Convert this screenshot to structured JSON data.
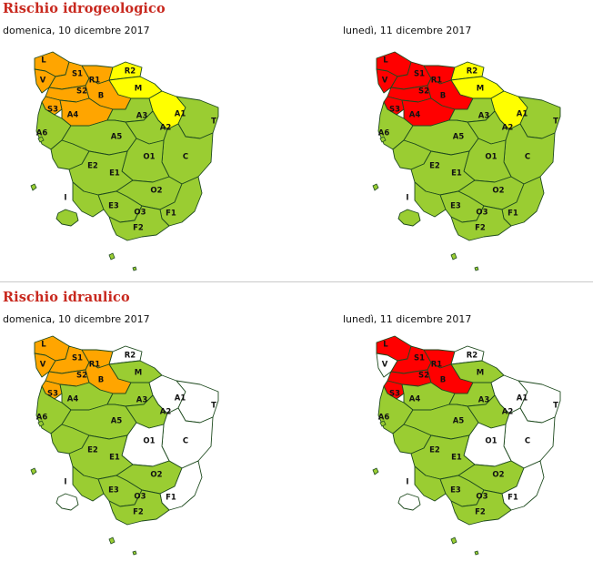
{
  "sections": [
    {
      "title": "Rischio idrogeologico",
      "maps": [
        {
          "date": "domenica, 10 dicembre 2017",
          "zones": {
            "L": "orange",
            "V": "orange",
            "S1": "orange",
            "S2": "orange",
            "S3": "orange",
            "A4": "orange",
            "B": "orange",
            "R1": "orange",
            "R2": "yellow",
            "M": "yellow",
            "A1": "yellow",
            "T": "green",
            "A3": "green",
            "A2": "green",
            "A6": "green",
            "A5": "green",
            "C": "green",
            "O1": "green",
            "E2": "green",
            "E1": "green",
            "O2": "green",
            "E3": "green",
            "O3": "green",
            "F1": "green",
            "F2": "green",
            "I": "green"
          }
        },
        {
          "date": "lunedì, 11 dicembre 2017",
          "zones": {
            "L": "red",
            "V": "red",
            "S1": "red",
            "S2": "red",
            "S3": "red",
            "A4": "red",
            "B": "red",
            "R1": "red",
            "R2": "yellow",
            "M": "yellow",
            "A1": "yellow",
            "T": "green",
            "A3": "green",
            "A2": "green",
            "A6": "green",
            "A5": "green",
            "C": "green",
            "O1": "green",
            "E2": "green",
            "E1": "green",
            "O2": "green",
            "E3": "green",
            "O3": "green",
            "F1": "green",
            "F2": "green",
            "I": "green"
          }
        }
      ]
    },
    {
      "title": "Rischio idraulico",
      "maps": [
        {
          "date": "domenica, 10 dicembre 2017",
          "zones": {
            "L": "orange",
            "V": "orange",
            "S1": "orange",
            "S2": "orange",
            "S3": "orange",
            "A4": "green",
            "B": "orange",
            "R1": "orange",
            "R2": "white",
            "M": "green",
            "A1": "white",
            "T": "white",
            "A3": "green",
            "A2": "green",
            "A6": "green",
            "A5": "green",
            "C": "white",
            "O1": "white",
            "E2": "green",
            "E1": "green",
            "O2": "green",
            "E3": "green",
            "O3": "green",
            "F1": "white",
            "F2": "green",
            "I": "white"
          }
        },
        {
          "date": "lunedì, 11 dicembre 2017",
          "zones": {
            "L": "red",
            "V": "white",
            "S1": "red",
            "S2": "red",
            "S3": "red",
            "A4": "green",
            "B": "red",
            "R1": "red",
            "R2": "white",
            "M": "green",
            "A1": "white",
            "T": "white",
            "A3": "green",
            "A2": "green",
            "A6": "green",
            "A5": "green",
            "C": "white",
            "O1": "white",
            "E2": "green",
            "E1": "green",
            "O2": "green",
            "E3": "green",
            "O3": "green",
            "F1": "white",
            "F2": "green",
            "I": "white"
          }
        }
      ]
    }
  ],
  "colors": {
    "red": "#ff0000",
    "orange": "#ffa500",
    "yellow": "#ffff00",
    "green": "#9acd32",
    "white": "#ffffff",
    "title": "#c8281e"
  }
}
